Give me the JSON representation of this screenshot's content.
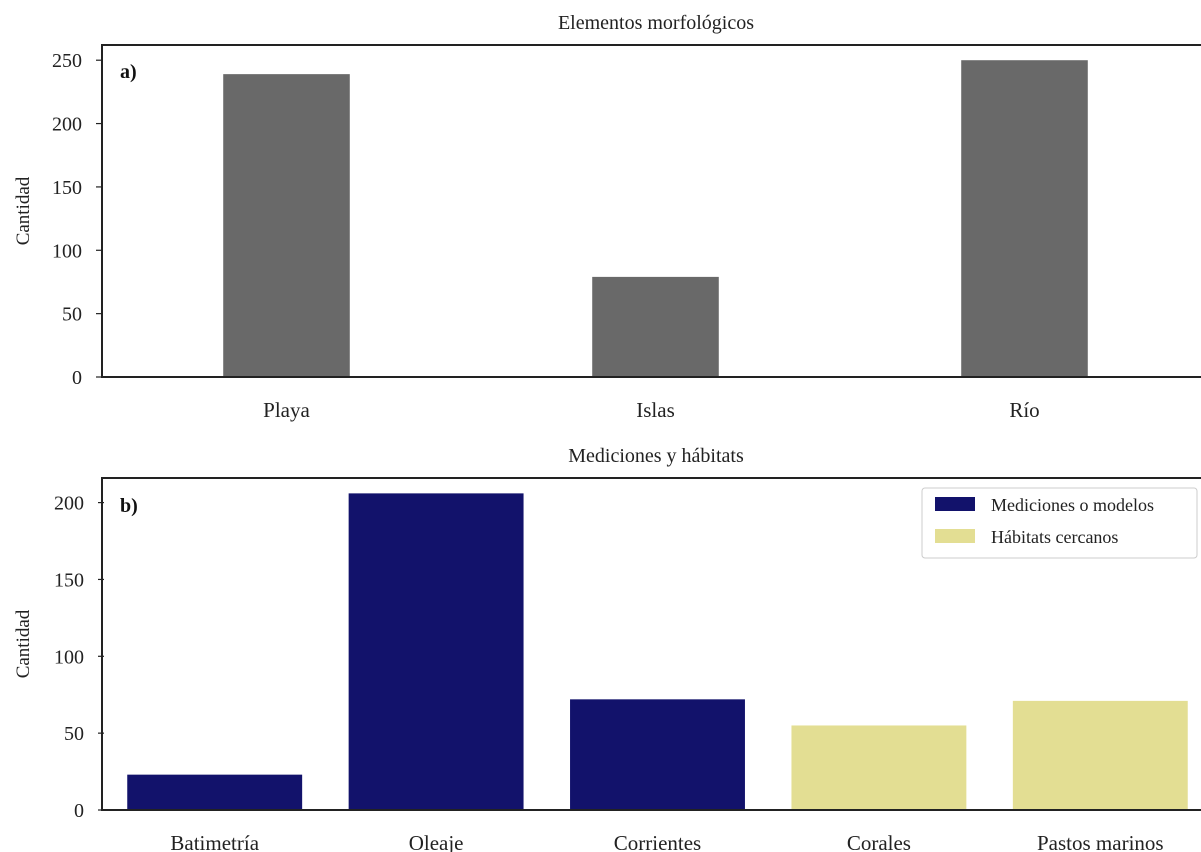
{
  "chart_data": [
    {
      "type": "bar",
      "title": "Elementos morfológicos",
      "panel_label": "a)",
      "ylabel": "Cantidad",
      "xlabel": "",
      "categories": [
        "Playa",
        "Islas",
        "Río"
      ],
      "values": [
        239,
        79,
        250
      ],
      "ylim": [
        0,
        262
      ],
      "yticks": [
        0,
        50,
        100,
        150,
        200,
        250
      ],
      "bar_color": "#696969",
      "grid": false
    },
    {
      "type": "bar",
      "title": "Mediciones y hábitats",
      "panel_label": "b)",
      "ylabel": "Cantidad",
      "xlabel": "",
      "categories": [
        "Batimetría",
        "Oleaje",
        "Corrientes",
        "Corales",
        "Pastos marinos"
      ],
      "values": [
        23,
        206,
        72,
        55,
        71
      ],
      "bar_groups": [
        0,
        0,
        0,
        1,
        1
      ],
      "ylim": [
        0,
        216
      ],
      "yticks": [
        0,
        50,
        100,
        150,
        200
      ],
      "grid": false,
      "legend_position": "top-right",
      "legend": [
        {
          "label": "Mediciones o modelos",
          "color": "#12126b"
        },
        {
          "label": "Hábitats cercanos",
          "color": "#e3de93"
        }
      ]
    }
  ]
}
